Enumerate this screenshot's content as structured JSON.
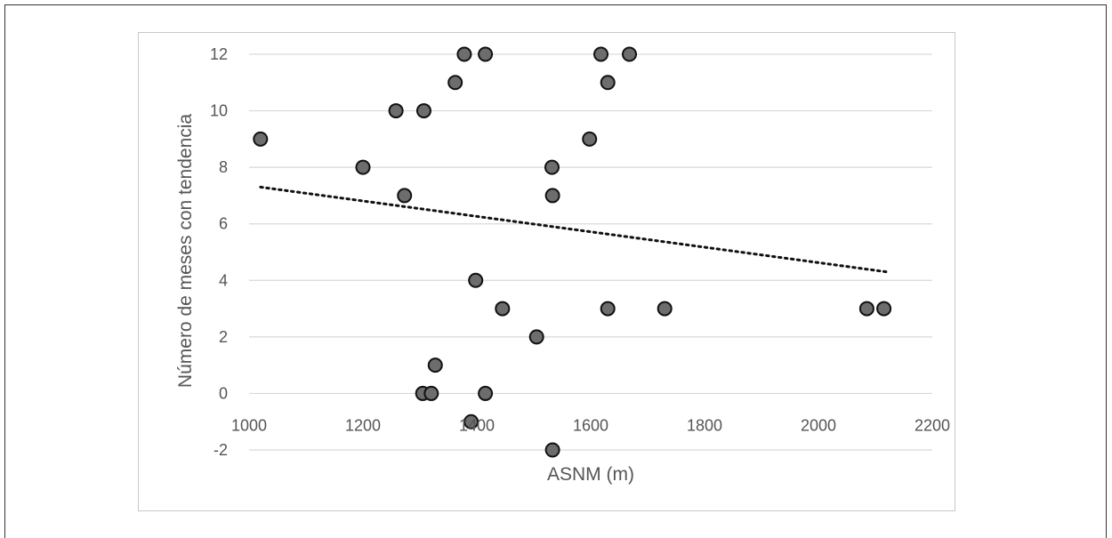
{
  "chart_data": {
    "type": "scatter",
    "xlabel": "ASNM (m)",
    "ylabel": "Número de meses con tendencia",
    "xlim": [
      1000,
      2200
    ],
    "ylim": [
      -2,
      12
    ],
    "x_ticks": [
      "1000",
      "1200",
      "1400",
      "1600",
      "1800",
      "2000",
      "2200"
    ],
    "y_ticks": [
      "12",
      "10",
      "8",
      "6",
      "4",
      "2",
      "0",
      "-2"
    ],
    "grid": "horizontal",
    "point_color": "#6d6d6d",
    "trendline": {
      "style": "dotted",
      "x": [
        1020,
        2120
      ],
      "y": [
        7.3,
        4.3
      ]
    },
    "points": [
      {
        "x": 1020,
        "y": 9
      },
      {
        "x": 1200,
        "y": 8
      },
      {
        "x": 1258,
        "y": 10
      },
      {
        "x": 1273,
        "y": 7
      },
      {
        "x": 1307,
        "y": 10
      },
      {
        "x": 1305,
        "y": 0
      },
      {
        "x": 1320,
        "y": 0
      },
      {
        "x": 1327,
        "y": 1
      },
      {
        "x": 1362,
        "y": 11
      },
      {
        "x": 1378,
        "y": 12
      },
      {
        "x": 1390,
        "y": -1
      },
      {
        "x": 1398,
        "y": 4
      },
      {
        "x": 1415,
        "y": 12
      },
      {
        "x": 1415,
        "y": 0
      },
      {
        "x": 1445,
        "y": 3
      },
      {
        "x": 1505,
        "y": 2
      },
      {
        "x": 1532,
        "y": 8
      },
      {
        "x": 1533,
        "y": 7
      },
      {
        "x": 1533,
        "y": -2
      },
      {
        "x": 1598,
        "y": 9
      },
      {
        "x": 1618,
        "y": 12
      },
      {
        "x": 1630,
        "y": 11
      },
      {
        "x": 1630,
        "y": 3
      },
      {
        "x": 1668,
        "y": 12
      },
      {
        "x": 1730,
        "y": 3
      },
      {
        "x": 2085,
        "y": 3
      },
      {
        "x": 2115,
        "y": 3
      }
    ]
  }
}
